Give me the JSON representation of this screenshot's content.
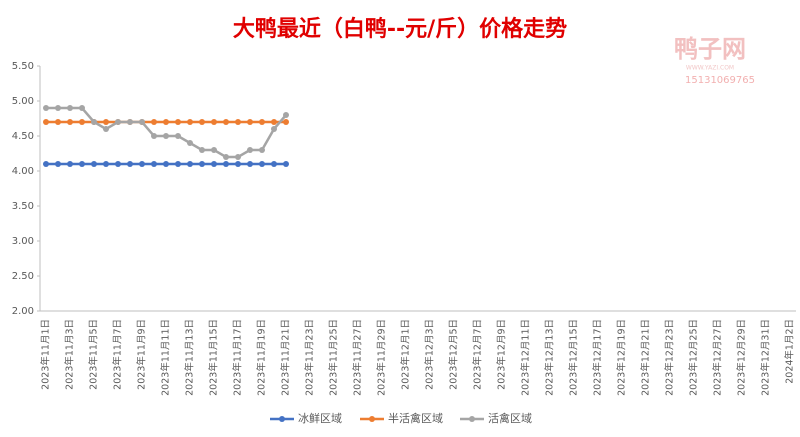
{
  "chart_data": {
    "type": "line",
    "title": "大鸭最近（白鸭--元/斤）价格走势",
    "watermark": {
      "logo": "鸭子网",
      "site": "WWW.YAZI.COM",
      "phone": "15131069765"
    },
    "categories": [
      "2023年11月1日",
      null,
      "2023年11月3日",
      null,
      "2023年11月5日",
      null,
      "2023年11月7日",
      null,
      "2023年11月9日",
      null,
      "2023年11月11日",
      null,
      "2023年11月13日",
      null,
      "2023年11月15日",
      null,
      "2023年11月17日",
      null,
      "2023年11月19日",
      null,
      "2023年11月21日",
      null,
      "2023年11月23日",
      null,
      "2023年11月25日",
      null,
      "2023年11月27日",
      null,
      "2023年11月29日",
      null,
      "2023年12月1日",
      null,
      "2023年12月3日",
      null,
      "2023年12月5日",
      null,
      "2023年12月7日",
      null,
      "2023年12月9日",
      null,
      "2023年12月11日",
      null,
      "2023年12月13日",
      null,
      "2023年12月15日",
      null,
      "2023年12月17日",
      null,
      "2023年12月19日",
      null,
      "2023年12月21日",
      null,
      "2023年12月23日",
      null,
      "2023年12月25日",
      null,
      "2023年12月27日",
      null,
      "2023年12月29日",
      null,
      "2023年12月31日",
      null,
      "2024年1月2日"
    ],
    "series": [
      {
        "name": "冰鲜区域",
        "color": "#4472c4",
        "values": [
          4.1,
          4.1,
          4.1,
          4.1,
          4.1,
          4.1,
          4.1,
          4.1,
          4.1,
          4.1,
          4.1,
          4.1,
          4.1,
          4.1,
          4.1,
          4.1,
          4.1,
          4.1,
          4.1,
          4.1,
          4.1,
          null,
          null,
          null,
          null,
          null,
          null,
          null,
          null,
          null,
          null,
          null,
          null,
          null,
          null,
          null,
          null,
          null,
          null,
          null,
          null,
          null,
          null,
          null,
          null,
          null,
          null,
          null,
          null,
          null,
          null,
          null,
          null,
          null,
          null,
          null,
          null,
          null,
          null,
          null,
          null,
          null,
          null
        ]
      },
      {
        "name": "半活禽区域",
        "color": "#ed7d31",
        "values": [
          4.7,
          4.7,
          4.7,
          4.7,
          4.7,
          4.7,
          4.7,
          4.7,
          4.7,
          4.7,
          4.7,
          4.7,
          4.7,
          4.7,
          4.7,
          4.7,
          4.7,
          4.7,
          4.7,
          4.7,
          4.7,
          null,
          null,
          null,
          null,
          null,
          null,
          null,
          null,
          null,
          null,
          null,
          null,
          null,
          null,
          null,
          null,
          null,
          null,
          null,
          null,
          null,
          null,
          null,
          null,
          null,
          null,
          null,
          null,
          null,
          null,
          null,
          null,
          null,
          null,
          null,
          null,
          null,
          null,
          null,
          null,
          null,
          null
        ]
      },
      {
        "name": "活禽区域",
        "color": "#a5a5a5",
        "values": [
          4.9,
          4.9,
          4.9,
          4.9,
          4.7,
          4.6,
          4.7,
          4.7,
          4.7,
          4.5,
          4.5,
          4.5,
          4.4,
          4.3,
          4.3,
          4.2,
          4.2,
          4.3,
          4.3,
          4.6,
          4.8,
          null,
          null,
          null,
          null,
          null,
          null,
          null,
          null,
          null,
          null,
          null,
          null,
          null,
          null,
          null,
          null,
          null,
          null,
          null,
          null,
          null,
          null,
          null,
          null,
          null,
          null,
          null,
          null,
          null,
          null,
          null,
          null,
          null,
          null,
          null,
          null,
          null,
          null,
          null,
          null,
          null,
          null
        ]
      }
    ],
    "ylim": [
      2,
      5.5
    ],
    "yticks": [
      {
        "value": 2,
        "label": "2.00"
      },
      {
        "value": 2.5,
        "label": "2.50"
      },
      {
        "value": 3,
        "label": "3.00"
      },
      {
        "value": 3.5,
        "label": "3.50"
      },
      {
        "value": 4,
        "label": "4.00"
      },
      {
        "value": 4.5,
        "label": "4.50"
      },
      {
        "value": 5,
        "label": "5.00"
      },
      {
        "value": 5.5,
        "label": "5.50"
      }
    ],
    "legend": "bottom"
  }
}
